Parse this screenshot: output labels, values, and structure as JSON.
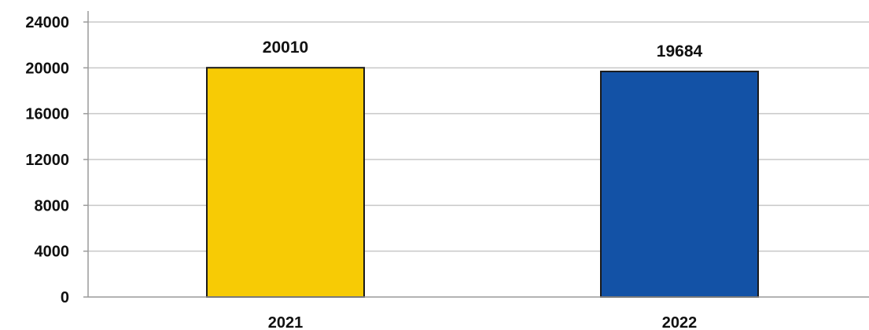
{
  "chart_data": {
    "type": "bar",
    "title": "",
    "xlabel": "",
    "ylabel": "",
    "categories": [
      "2021",
      "2022"
    ],
    "values": [
      20010,
      19684
    ],
    "data_labels": [
      "20010",
      "19684"
    ],
    "ylim": [
      0,
      24000
    ],
    "yticks": [
      0,
      4000,
      8000,
      12000,
      16000,
      20000,
      24000
    ],
    "ytick_labels": [
      "0",
      "4000",
      "8000",
      "12000",
      "16000",
      "20000",
      "24000"
    ],
    "grid": true,
    "legend": "none",
    "colors": {
      "bars": [
        "#f7cb05",
        "#1352a6"
      ],
      "bar_outline": "#1a1a1a",
      "gridline": "#c8c8c8",
      "text": "#111111"
    }
  }
}
